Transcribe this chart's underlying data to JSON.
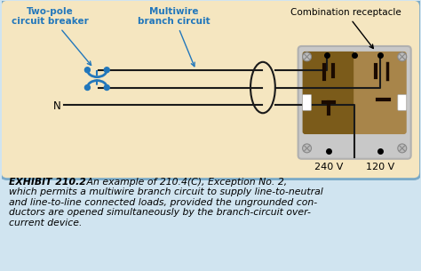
{
  "bg_outer": "#d0e4f0",
  "bg_diagram": "#f5e6c0",
  "border_color": "#7aaac8",
  "line_color": "#1a1a1a",
  "breaker_color": "#2277bb",
  "label_color": "#2277bb",
  "receptacle_body_dark": "#7B5B1A",
  "receptacle_body_light": "#a8854a",
  "receptacle_bg": "#c8c8c8",
  "receptacle_border": "#b0b0b0",
  "text_color_main": "#000000",
  "caption_bold": "EXHIBIT 210.2",
  "caption_rest": "  An example of 210.4(C), Exception No. 2,\nwhich permits a multiwire branch circuit to supply line-to-neutral\nand line-to-line connected loads, provided the ungrounded con-\nductors are opened simultaneously by the branch-circuit over-\ncurrent device.",
  "label_two_pole": "Two-pole\ncircuit breaker",
  "label_multiwire": "Multiwire\nbranch circuit",
  "label_combination": "Combination receptacle",
  "label_240v": "240 V",
  "label_120v": "120 V",
  "label_N": "N"
}
